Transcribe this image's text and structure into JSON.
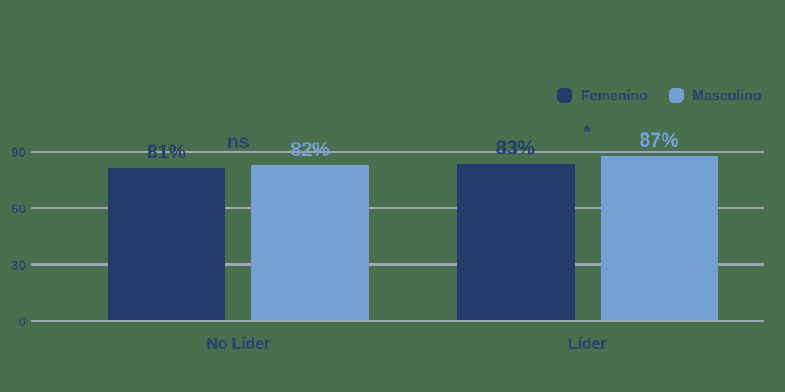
{
  "background_color": "#48704E",
  "text_color": "#2B4170",
  "chart_data": {
    "type": "bar",
    "title": "",
    "categories": [
      "No Líder",
      "Líder"
    ],
    "series": [
      {
        "name": "Femenino",
        "color": "#233A6B",
        "label_color": "#24406D",
        "values": [
          81,
          83
        ],
        "value_labels": [
          "81%",
          "83%"
        ]
      },
      {
        "name": "Masculino",
        "color": "#74A0D4",
        "label_color": "#77A2D7",
        "values": [
          82,
          87
        ],
        "value_labels": [
          "82%",
          "87%"
        ]
      }
    ],
    "annotations": [
      {
        "category": "No Líder",
        "text": "ns"
      },
      {
        "category": "Líder",
        "text": "*"
      }
    ],
    "y_axis": {
      "ticks": [
        0,
        30,
        60,
        90
      ],
      "range": [
        0,
        100
      ],
      "gridline_color": "#9FA6B8",
      "tick_color": "#2B4170",
      "grid": true
    },
    "legend": {
      "position": "top-right"
    }
  }
}
